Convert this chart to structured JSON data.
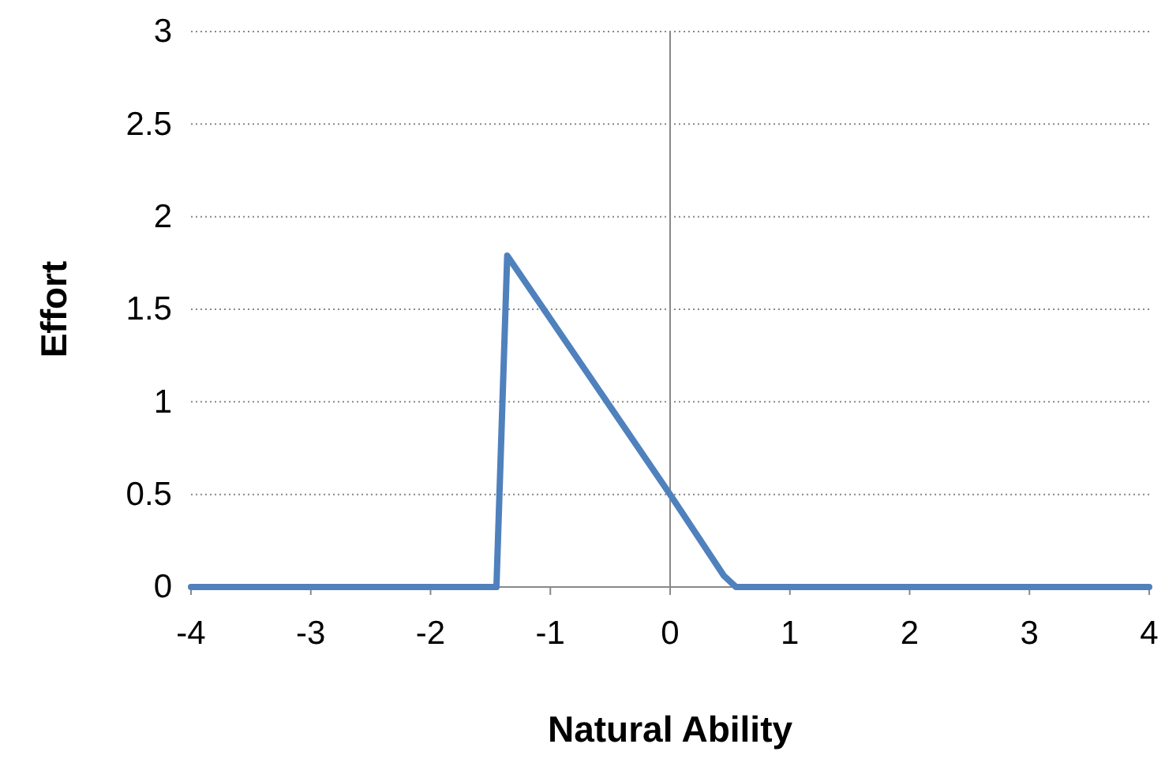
{
  "chart_data": {
    "type": "line",
    "xlabel": "Natural Ability",
    "ylabel": "Effort",
    "xlim": [
      -4,
      4
    ],
    "xticks": [
      -4,
      -3,
      -2,
      -1,
      0,
      1,
      2,
      3,
      4
    ],
    "ylim": [
      0,
      3
    ],
    "yticks": [
      0,
      0.5,
      1,
      1.5,
      2,
      2.5,
      3
    ],
    "grid": "y",
    "marker": "none",
    "line_style": "solid",
    "series": [
      {
        "color": "#4f81bd",
        "x": [
          -4,
          -1.45,
          -1.36,
          0,
          0.45,
          0.55,
          4
        ],
        "values": [
          0,
          0,
          1.79,
          0.5,
          0.06,
          0,
          0
        ]
      }
    ]
  }
}
